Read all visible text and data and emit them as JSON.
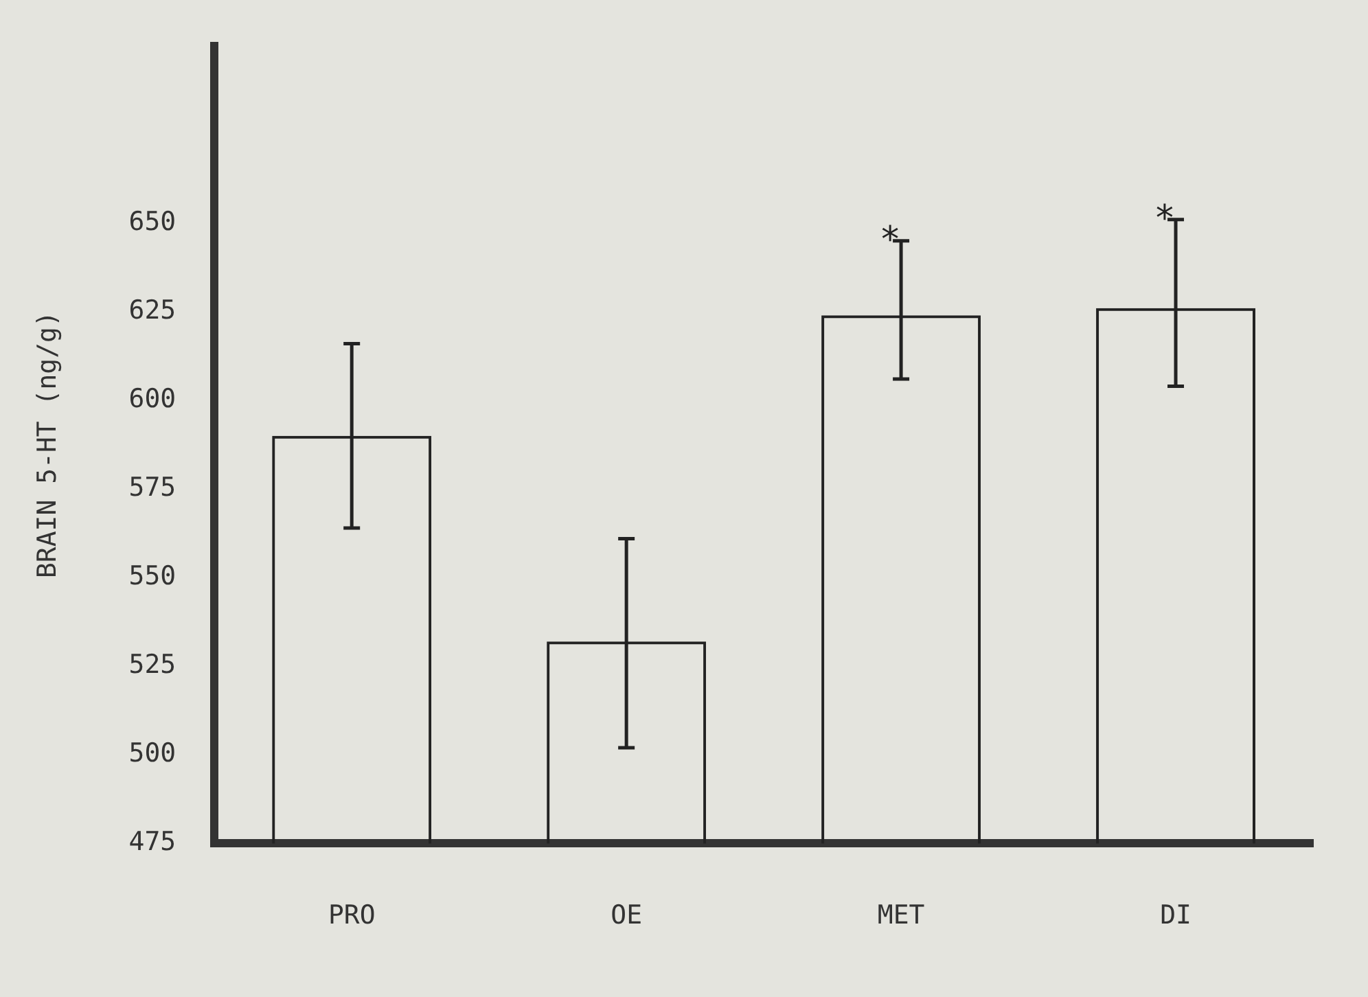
{
  "chart_data": {
    "type": "bar",
    "ylabel": "BRAIN 5-HT (ng/g)",
    "categories": [
      "PRO",
      "OE",
      "MET",
      "DI"
    ],
    "values": [
      590,
      532,
      624,
      626
    ],
    "color": "#222222",
    "errors": [
      [
        564,
        616
      ],
      [
        502,
        561
      ],
      [
        606,
        645
      ],
      [
        604,
        651
      ]
    ],
    "ylim": [
      475,
      700
    ],
    "yticks": [
      475,
      500,
      525,
      550,
      575,
      600,
      625,
      650
    ],
    "annotations": [
      {
        "text": "*",
        "x": "MET",
        "y": 645
      },
      {
        "text": "*",
        "x": "DI",
        "y": 651
      }
    ],
    "grid": false,
    "legend": false
  }
}
